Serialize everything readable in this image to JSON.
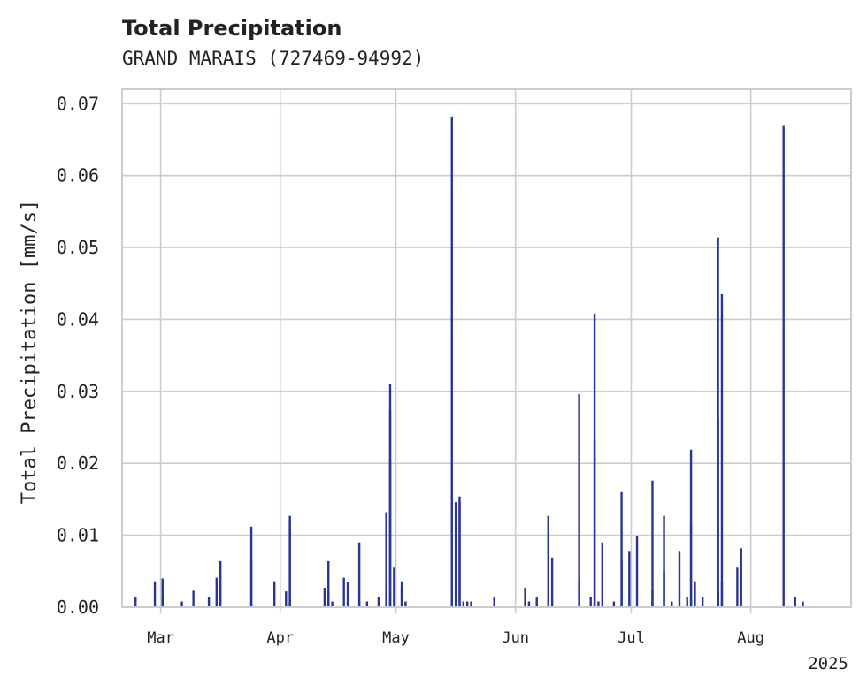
{
  "chart_data": {
    "type": "bar",
    "title": "Total Precipitation",
    "subtitle": "GRAND MARAIS (727469-94992)",
    "xlabel": "",
    "ylabel": "Total Precipitation [mm/s]",
    "xlim": [
      "2025-02-19",
      "2025-08-27"
    ],
    "ylim": [
      0,
      0.072
    ],
    "x_ticks": [
      {
        "date": "2025-03-01",
        "label": "Mar"
      },
      {
        "date": "2025-04-01",
        "label": "Apr"
      },
      {
        "date": "2025-05-01",
        "label": "May"
      },
      {
        "date": "2025-06-01",
        "label": "Jun"
      },
      {
        "date": "2025-07-01",
        "label": "Jul"
      },
      {
        "date": "2025-08-01",
        "label": "Aug"
      }
    ],
    "x_year_label": "2025",
    "y_ticks": [
      {
        "value": 0.0,
        "label": "0.00"
      },
      {
        "value": 0.01,
        "label": "0.01"
      },
      {
        "value": 0.02,
        "label": "0.02"
      },
      {
        "value": 0.03,
        "label": "0.03"
      },
      {
        "value": 0.04,
        "label": "0.04"
      },
      {
        "value": 0.05,
        "label": "0.05"
      },
      {
        "value": 0.06,
        "label": "0.06"
      },
      {
        "value": 0.07,
        "label": "0.07"
      }
    ],
    "grid": true,
    "bar_color": "#283593",
    "grid_color": "#cccccc",
    "points": [
      [
        "2025-02-22",
        0.0014
      ],
      [
        "2025-02-27",
        0.0036
      ],
      [
        "2025-03-01",
        0.0015
      ],
      [
        "2025-03-01",
        0.004
      ],
      [
        "2025-03-06",
        0.0008
      ],
      [
        "2025-03-09",
        0.0023
      ],
      [
        "2025-03-13",
        0.0014
      ],
      [
        "2025-03-15",
        0.0041
      ],
      [
        "2025-03-16",
        0.0064
      ],
      [
        "2025-03-24",
        0.0112
      ],
      [
        "2025-03-24",
        0.0065
      ],
      [
        "2025-03-30",
        0.0036
      ],
      [
        "2025-04-02",
        0.0022
      ],
      [
        "2025-04-03",
        0.0127
      ],
      [
        "2025-04-03",
        0.012
      ],
      [
        "2025-04-03",
        0.0008
      ],
      [
        "2025-04-12",
        0.0027
      ],
      [
        "2025-04-13",
        0.0064
      ],
      [
        "2025-04-13",
        0.0023
      ],
      [
        "2025-04-14",
        0.0008
      ],
      [
        "2025-04-17",
        0.0041
      ],
      [
        "2025-04-18",
        0.0035
      ],
      [
        "2025-04-21",
        0.009
      ],
      [
        "2025-04-21",
        0.0008
      ],
      [
        "2025-04-23",
        0.0008
      ],
      [
        "2025-04-26",
        0.0014
      ],
      [
        "2025-04-28",
        0.0027
      ],
      [
        "2025-04-28",
        0.0132
      ],
      [
        "2025-04-29",
        0.0275
      ],
      [
        "2025-04-29",
        0.031
      ],
      [
        "2025-04-29",
        0.0205
      ],
      [
        "2025-04-30",
        0.0055
      ],
      [
        "2025-05-02",
        0.0036
      ],
      [
        "2025-05-02",
        0.0027
      ],
      [
        "2025-05-03",
        0.0008
      ],
      [
        "2025-05-15",
        0.0682
      ],
      [
        "2025-05-16",
        0.0146
      ],
      [
        "2025-05-17",
        0.0154
      ],
      [
        "2025-05-17",
        0.0146
      ],
      [
        "2025-05-18",
        0.0008
      ],
      [
        "2025-05-19",
        0.0008
      ],
      [
        "2025-05-20",
        0.0008
      ],
      [
        "2025-05-26",
        0.0014
      ],
      [
        "2025-06-03",
        0.0027
      ],
      [
        "2025-06-04",
        0.0008
      ],
      [
        "2025-06-06",
        0.0014
      ],
      [
        "2025-06-06",
        0.0008
      ],
      [
        "2025-06-09",
        0.0127
      ],
      [
        "2025-06-10",
        0.0069
      ],
      [
        "2025-06-17",
        0.0296
      ],
      [
        "2025-06-17",
        0.0041
      ],
      [
        "2025-06-20",
        0.0014
      ],
      [
        "2025-06-21",
        0.0408
      ],
      [
        "2025-06-21",
        0.0233
      ],
      [
        "2025-06-22",
        0.0008
      ],
      [
        "2025-06-23",
        0.009
      ],
      [
        "2025-06-26",
        0.0008
      ],
      [
        "2025-06-28",
        0.016
      ],
      [
        "2025-06-28",
        0.0064
      ],
      [
        "2025-06-30",
        0.0077
      ],
      [
        "2025-07-02",
        0.0099
      ],
      [
        "2025-07-06",
        0.0176
      ],
      [
        "2025-07-06",
        0.0023
      ],
      [
        "2025-07-09",
        0.0127
      ],
      [
        "2025-07-09",
        0.005
      ],
      [
        "2025-07-11",
        0.0008
      ],
      [
        "2025-07-13",
        0.0077
      ],
      [
        "2025-07-15",
        0.0014
      ],
      [
        "2025-07-16",
        0.0219
      ],
      [
        "2025-07-16",
        0.012
      ],
      [
        "2025-07-17",
        0.0036
      ],
      [
        "2025-07-19",
        0.0014
      ],
      [
        "2025-07-23",
        0.0023
      ],
      [
        "2025-07-23",
        0.0514
      ],
      [
        "2025-07-23",
        0.0262
      ],
      [
        "2025-07-24",
        0.0435
      ],
      [
        "2025-07-24",
        0.0036
      ],
      [
        "2025-07-28",
        0.0055
      ],
      [
        "2025-07-29",
        0.0082
      ],
      [
        "2025-08-09",
        0.0669
      ],
      [
        "2025-08-12",
        0.0014
      ],
      [
        "2025-08-14",
        0.0008
      ]
    ]
  }
}
